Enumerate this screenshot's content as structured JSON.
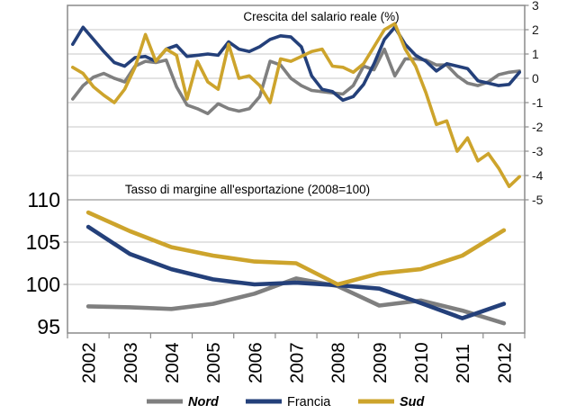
{
  "colors": {
    "nord": "#7f7f7f",
    "francia": "#24407a",
    "sud": "#cda42c",
    "gridline": "#c7c7c7",
    "frame": "#8a8a8a",
    "panel_divider": "#9a9a9a",
    "background": "#ffffff"
  },
  "legend": {
    "items": [
      {
        "label": "Nord",
        "color": "#7f7f7f",
        "emphasis": true
      },
      {
        "label": "Francia",
        "color": "#24407a",
        "emphasis": false
      },
      {
        "label": "Sud",
        "color": "#cda42c",
        "emphasis": true
      }
    ]
  },
  "chart_data": [
    {
      "type": "line",
      "panel": "top",
      "title": "Crescita del salario reale (%)",
      "x_unit": "quarterly",
      "x_years": [
        "2002",
        "2003",
        "2004",
        "2005",
        "2006",
        "2007",
        "2008",
        "2009",
        "2010",
        "2011",
        "2012"
      ],
      "ylabel_side": "right",
      "ylim": [
        -5,
        3
      ],
      "yticks": [
        3,
        2,
        1,
        0,
        -1,
        -2,
        -3,
        -4,
        -5
      ],
      "grid": true,
      "series": [
        {
          "name": "Nord",
          "color": "#7f7f7f",
          "values": [
            -0.85,
            -0.3,
            0.05,
            0.2,
            0.0,
            -0.15,
            0.5,
            0.7,
            0.65,
            0.75,
            -0.35,
            -1.1,
            -1.25,
            -1.45,
            -1.05,
            -1.25,
            -1.35,
            -1.25,
            -0.75,
            0.7,
            0.55,
            0.0,
            -0.3,
            -0.5,
            -0.55,
            -0.6,
            -0.65,
            -0.3,
            0.5,
            0.35,
            1.2,
            0.1,
            0.8,
            0.8,
            0.75,
            0.55,
            0.55,
            0.1,
            -0.2,
            -0.3,
            -0.15,
            0.15,
            0.25,
            0.3
          ]
        },
        {
          "name": "Francia",
          "color": "#24407a",
          "values": [
            1.4,
            2.1,
            1.6,
            1.1,
            0.65,
            0.5,
            0.85,
            0.9,
            0.7,
            1.2,
            1.35,
            0.9,
            0.95,
            1.0,
            0.95,
            1.5,
            1.2,
            1.1,
            1.3,
            1.6,
            1.75,
            1.7,
            1.3,
            0.1,
            -0.45,
            -0.55,
            -0.9,
            -0.75,
            -0.25,
            0.6,
            1.6,
            2.1,
            1.4,
            0.95,
            0.7,
            0.3,
            0.6,
            0.5,
            0.4,
            -0.1,
            -0.2,
            -0.3,
            -0.25,
            0.25
          ]
        },
        {
          "name": "Sud",
          "color": "#cda42c",
          "values": [
            0.45,
            0.2,
            -0.35,
            -0.7,
            -1.0,
            -0.45,
            0.45,
            1.8,
            0.7,
            1.2,
            0.95,
            -0.85,
            0.7,
            -0.15,
            -0.45,
            1.4,
            0.0,
            0.1,
            -0.3,
            -1.0,
            0.8,
            0.7,
            0.9,
            1.1,
            1.2,
            0.5,
            0.45,
            0.25,
            0.6,
            1.3,
            2.0,
            2.25,
            1.2,
            0.5,
            -0.6,
            -1.9,
            -1.75,
            -3.0,
            -2.45,
            -3.4,
            -3.1,
            -3.7,
            -4.45,
            -4.05
          ]
        }
      ]
    },
    {
      "type": "line",
      "panel": "bottom",
      "title": "Tasso di margine all'esportazione (2008=100)",
      "x_unit": "annual",
      "categories": [
        "2002",
        "2003",
        "2004",
        "2005",
        "2006",
        "2007",
        "2008",
        "2009",
        "2010",
        "2011",
        "2012"
      ],
      "ylabel_side": "left",
      "ylim": [
        95,
        110
      ],
      "yticks": [
        110,
        105,
        100,
        95
      ],
      "grid": true,
      "series": [
        {
          "name": "Nord",
          "color": "#7f7f7f",
          "values": [
            97.4,
            97.3,
            97.1,
            97.7,
            98.9,
            100.7,
            99.8,
            97.5,
            98.1,
            96.9,
            95.4
          ]
        },
        {
          "name": "Francia",
          "color": "#24407a",
          "values": [
            106.8,
            103.6,
            101.8,
            100.6,
            100.0,
            100.2,
            99.9,
            99.5,
            97.8,
            96.0,
            97.7
          ]
        },
        {
          "name": "Sud",
          "color": "#cda42c",
          "values": [
            108.5,
            106.3,
            104.4,
            103.4,
            102.7,
            102.5,
            100.0,
            101.3,
            101.8,
            103.4,
            106.4
          ]
        }
      ]
    }
  ]
}
